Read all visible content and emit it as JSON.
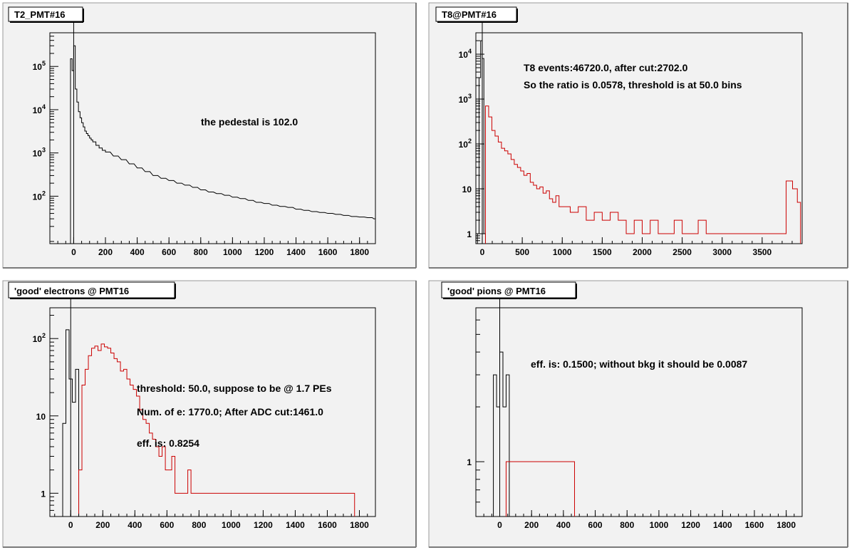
{
  "canvas": {
    "background": "#f2f2f2",
    "frame": "#ffffff",
    "axis_color": "#000000"
  },
  "chart_data": [
    {
      "type": "histogram",
      "title": "T2_PMT#16",
      "y_scale": "log",
      "xlim": [
        -150,
        1900
      ],
      "ylim": [
        8,
        600000
      ],
      "x_ticks": [
        0,
        200,
        400,
        600,
        800,
        1000,
        1200,
        1400,
        1600,
        1800
      ],
      "y_ticks": [
        {
          "value": 100,
          "label": "10^2"
        },
        {
          "value": 1000,
          "label": "10^3"
        },
        {
          "value": 10000,
          "label": "10^4"
        },
        {
          "value": 100000,
          "label": "10^5"
        }
      ],
      "vertical_line_x": 0,
      "annotations": [
        "the pedestal is 102.0"
      ],
      "series": [
        {
          "color": "#000000",
          "bin_width": 10,
          "x": [
            -20,
            -10,
            0,
            10,
            20,
            30,
            40,
            50,
            60,
            70,
            80,
            90,
            100,
            110,
            120,
            140,
            160,
            180,
            200,
            250,
            300,
            350,
            400,
            450,
            500,
            550,
            600,
            650,
            700,
            750,
            800,
            850,
            900,
            950,
            1000,
            1050,
            1100,
            1150,
            1200,
            1250,
            1300,
            1350,
            1400,
            1450,
            1500,
            1550,
            1600,
            1650,
            1700,
            1750,
            1800,
            1850,
            1890
          ],
          "y": [
            150000,
            80000,
            300000,
            30000,
            15000,
            9000,
            6500,
            5000,
            4000,
            3200,
            2800,
            2500,
            2200,
            2000,
            1800,
            1500,
            1300,
            1150,
            1050,
            850,
            700,
            560,
            450,
            370,
            300,
            260,
            230,
            200,
            180,
            160,
            140,
            125,
            115,
            105,
            95,
            88,
            80,
            72,
            68,
            62,
            58,
            55,
            50,
            47,
            44,
            42,
            40,
            38,
            36,
            34,
            33,
            32,
            30
          ]
        }
      ]
    },
    {
      "type": "histogram",
      "title": "T8@PMT#16",
      "y_scale": "log",
      "xlim": [
        -80,
        4000
      ],
      "ylim": [
        0.6,
        30000
      ],
      "x_ticks": [
        0,
        500,
        1000,
        1500,
        2000,
        2500,
        3000,
        3500
      ],
      "y_ticks": [
        {
          "value": 1,
          "label": "1"
        },
        {
          "value": 10,
          "label": "10"
        },
        {
          "value": 100,
          "label": "10^2"
        },
        {
          "value": 1000,
          "label": "10^3"
        },
        {
          "value": 10000,
          "label": "10^4"
        }
      ],
      "vertical_line_x": 0,
      "annotations": [
        "T8 events:46720.0,  after cut:2702.0",
        "So the ratio is 0.0578, threshold is at 50.0 bins"
      ],
      "series": [
        {
          "color": "#000000",
          "bin_width": 20,
          "x": [
            -60,
            -40,
            -20,
            0,
            20
          ],
          "y": [
            1,
            3000,
            20000,
            8000,
            1
          ]
        },
        {
          "color": "#cc0000",
          "bin_width": 40,
          "x": [
            40,
            80,
            120,
            160,
            200,
            240,
            280,
            320,
            360,
            400,
            440,
            480,
            520,
            560,
            600,
            640,
            680,
            720,
            760,
            800,
            840,
            880,
            920,
            960,
            1000,
            1100,
            1200,
            1300,
            1400,
            1500,
            1600,
            1700,
            1800,
            1900,
            2000,
            2100,
            2200,
            2300,
            2400,
            2500,
            2600,
            2700,
            2800,
            2900,
            3000,
            3100,
            3200,
            3300,
            3400,
            3500,
            3600,
            3700,
            3800,
            3880,
            3940
          ],
          "y": [
            700,
            400,
            200,
            150,
            110,
            80,
            70,
            60,
            45,
            35,
            30,
            25,
            20,
            22,
            14,
            12,
            10,
            11,
            8,
            9,
            6,
            5,
            7,
            4,
            4,
            3,
            4,
            2,
            3,
            2,
            3,
            2,
            1,
            2,
            1,
            2,
            1,
            1,
            2,
            1,
            1,
            2,
            1,
            1,
            1,
            1,
            1,
            1,
            1,
            1,
            1,
            1,
            15,
            10,
            5
          ]
        }
      ]
    },
    {
      "type": "histogram",
      "title": "'good' electrons @ PMT16",
      "y_scale": "log",
      "xlim": [
        -130,
        1900
      ],
      "ylim": [
        0.5,
        250
      ],
      "x_ticks": [
        0,
        200,
        400,
        600,
        800,
        1000,
        1200,
        1400,
        1600,
        1800
      ],
      "y_ticks": [
        {
          "value": 1,
          "label": "1"
        },
        {
          "value": 10,
          "label": "10"
        },
        {
          "value": 100,
          "label": "10^2"
        }
      ],
      "vertical_line_x": 0,
      "annotations": [
        "threshold: 50.0, suppose to be @ 1.7 PEs",
        "Num. of e: 1770.0;  After ADC cut:1461.0",
        "eff. is: 0.8254"
      ],
      "series": [
        {
          "color": "#000000",
          "bin_width": 20,
          "x": [
            -50,
            -30,
            -10,
            10,
            30
          ],
          "y": [
            8,
            130,
            30,
            15,
            40
          ]
        },
        {
          "color": "#cc0000",
          "bin_width": 20,
          "x": [
            50,
            70,
            90,
            110,
            130,
            150,
            170,
            190,
            210,
            230,
            250,
            270,
            290,
            310,
            330,
            350,
            370,
            390,
            410,
            430,
            450,
            470,
            490,
            510,
            530,
            550,
            570,
            590,
            610,
            630,
            650,
            670,
            690,
            710,
            730,
            750,
            770,
            790,
            810,
            850,
            890,
            950,
            1010,
            1110,
            1210,
            1400,
            1450,
            1590,
            1710,
            1750
          ],
          "y": [
            2,
            25,
            40,
            60,
            75,
            80,
            70,
            85,
            78,
            75,
            65,
            55,
            50,
            38,
            40,
            30,
            25,
            22,
            18,
            12,
            9,
            8,
            6,
            5,
            4,
            3,
            4,
            2,
            2,
            3,
            1,
            1,
            1,
            1,
            2,
            1,
            1,
            1,
            1,
            1,
            1,
            1,
            1,
            1,
            1,
            1,
            1,
            1,
            1,
            1
          ]
        }
      ]
    },
    {
      "type": "histogram",
      "title": "'good' pions @ PMT16",
      "y_scale": "log",
      "xlim": [
        -150,
        1900
      ],
      "ylim": [
        0.5,
        7
      ],
      "x_ticks": [
        0,
        200,
        400,
        600,
        800,
        1000,
        1200,
        1400,
        1600,
        1800
      ],
      "y_ticks": [
        {
          "value": 1,
          "label": "1"
        }
      ],
      "vertical_line_x": 0,
      "annotations": [
        "eff. is: 0.1500;  without bkg it should be 0.0087"
      ],
      "series": [
        {
          "color": "#000000",
          "bin_width": 20,
          "x": [
            -40,
            -20,
            0,
            20,
            40
          ],
          "y": [
            3,
            2,
            4,
            2,
            3
          ]
        },
        {
          "color": "#cc0000",
          "bin_width": 20,
          "x": [
            40,
            170,
            450
          ],
          "y": [
            1,
            1,
            1
          ]
        }
      ]
    }
  ]
}
